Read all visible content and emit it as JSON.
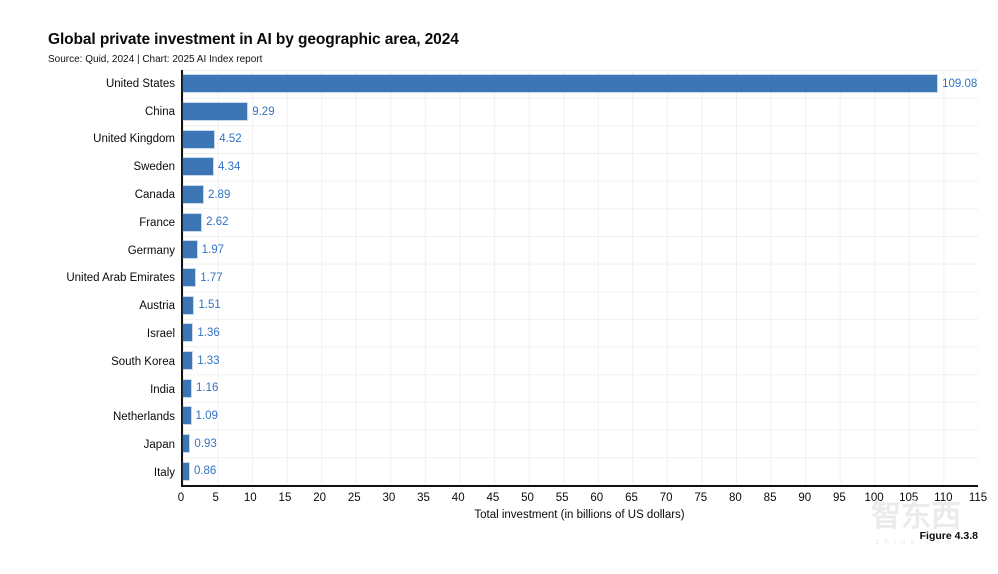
{
  "header": {
    "title": "Global private investment in AI by geographic area, 2024",
    "subtitle": "Source: Quid, 2024 | Chart: 2025 AI Index report"
  },
  "chart_data": {
    "type": "bar",
    "orientation": "horizontal",
    "title": "Global private investment in AI by geographic area, 2024",
    "categories": [
      "United States",
      "China",
      "United Kingdom",
      "Sweden",
      "Canada",
      "France",
      "Germany",
      "United Arab Emirates",
      "Austria",
      "Israel",
      "South Korea",
      "India",
      "Netherlands",
      "Japan",
      "Italy"
    ],
    "values": [
      109.08,
      9.29,
      4.52,
      4.34,
      2.89,
      2.62,
      1.97,
      1.77,
      1.51,
      1.36,
      1.33,
      1.16,
      1.09,
      0.93,
      0.86
    ],
    "value_labels": [
      "109.08",
      "9.29",
      "4.52",
      "4.34",
      "2.89",
      "2.62",
      "1.97",
      "1.77",
      "1.51",
      "1.36",
      "1.33",
      "1.16",
      "1.09",
      "0.93",
      "0.86"
    ],
    "xlabel": "Total investment (in billions of US dollars)",
    "ylabel": "",
    "xlim": [
      0,
      115
    ],
    "xticks": [
      0,
      5,
      10,
      15,
      20,
      25,
      30,
      35,
      40,
      45,
      50,
      55,
      60,
      65,
      70,
      75,
      80,
      85,
      90,
      95,
      100,
      105,
      110,
      115
    ],
    "grid": true,
    "legend": "none",
    "bar_color": "#3d76b4",
    "value_label_color": "#3273c4",
    "grid_color": "#f0f0f0",
    "axis_color": "#111111"
  },
  "footer": {
    "figure_label": "Figure 4.3.8",
    "watermark": "智东西",
    "watermark_sub": "zhidx.com"
  }
}
